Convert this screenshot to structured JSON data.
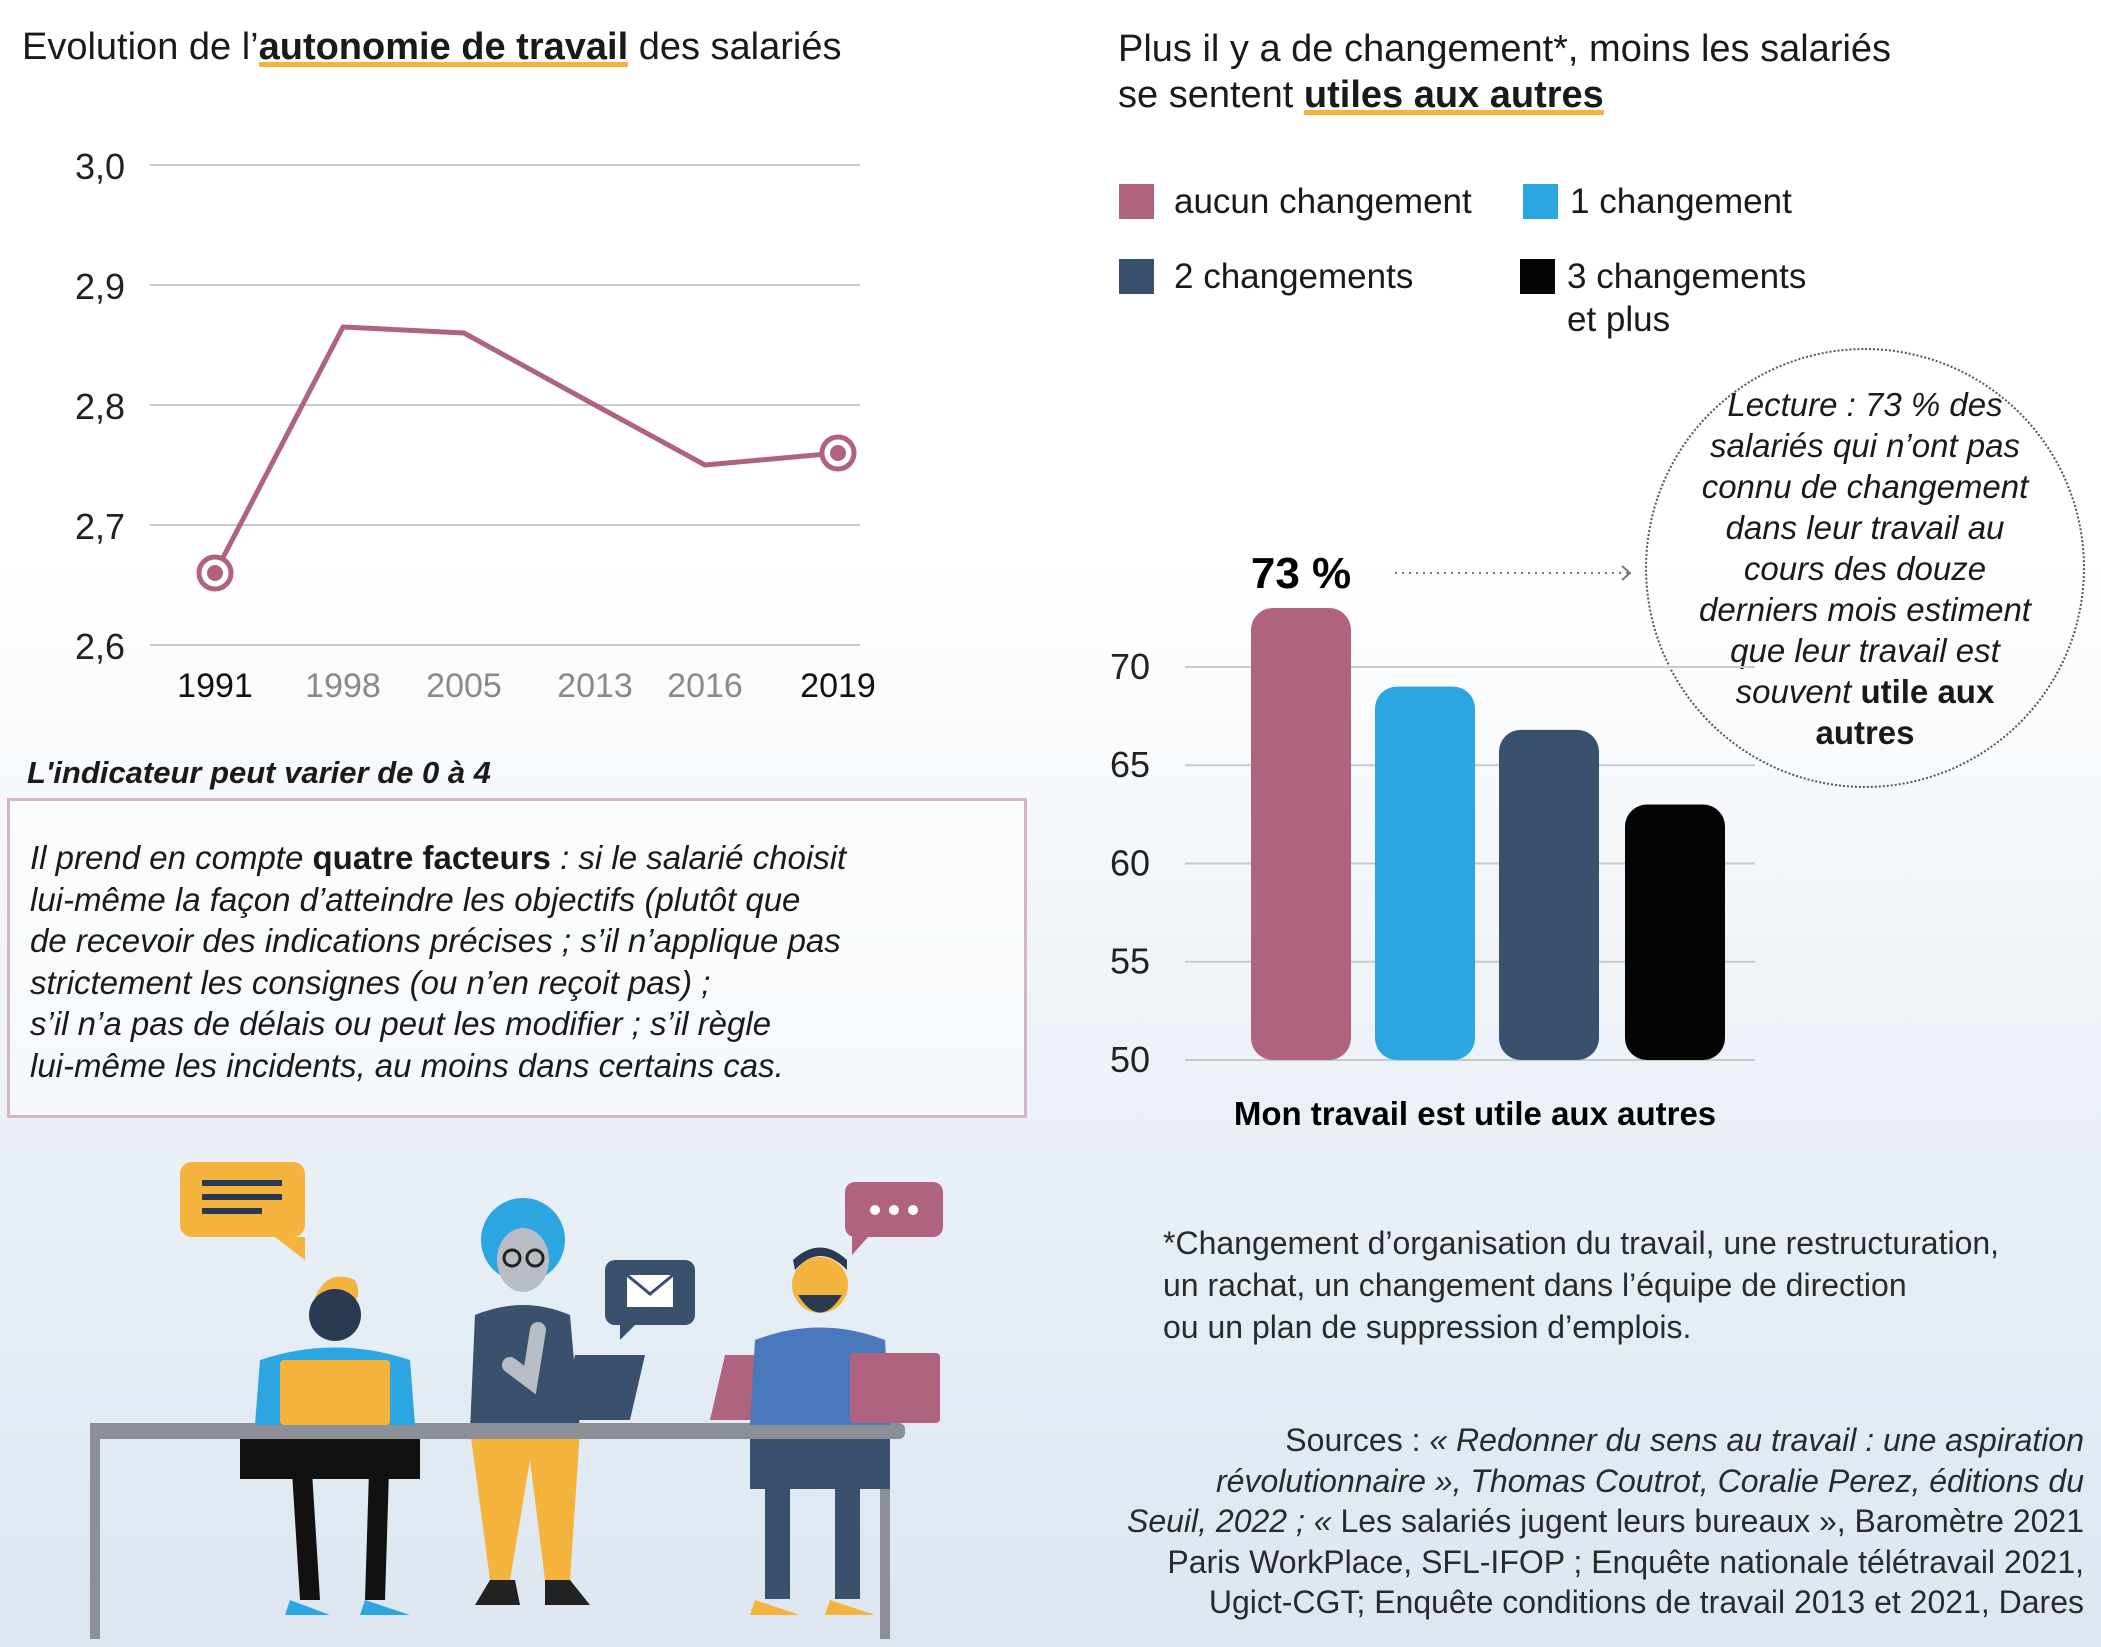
{
  "left_title": {
    "pre": "Evolution de l’",
    "highlight": "autonomie de travail",
    "post": " des salariés"
  },
  "right_title": {
    "line1": "Plus il y a de changement*, moins les salariés",
    "line2_pre": "se sentent ",
    "highlight": "utiles aux autres"
  },
  "legend": [
    {
      "label": "aucun changement",
      "color": "#b0637f"
    },
    {
      "label": "1 changement",
      "color": "#2ca6e0"
    },
    {
      "label": "2 changements",
      "color": "#3a516e"
    },
    {
      "label": "3 changements",
      "label2": "et plus",
      "color": "#050505"
    }
  ],
  "lecture": {
    "text": "Lecture : 73 % des salariés qui n’ont pas connu de changement dans leur travail au cours des douze derniers mois estiment que leur travail est souvent",
    "bold": "utile aux autres"
  },
  "indicator": {
    "title": "L'indicateur peut varier de 0 à 4",
    "lines": [
      {
        "pre": "Il prend en compte ",
        "bold": "quatre facteurs",
        "post": " : si le salarié choisit"
      },
      {
        "text": "lui-même la façon d’atteindre les objectifs (plutôt que"
      },
      {
        "text": "de recevoir des indications précises ; s’il n’applique pas"
      },
      {
        "text": "strictement les consignes (ou n’en reçoit pas) ;"
      },
      {
        "text": "s’il n’a pas de délais ou peut les modifier ; s’il règle"
      },
      {
        "text": "lui-même les incidents, au moins dans certains cas."
      }
    ]
  },
  "footnote": [
    "*Changement d’organisation du travail, une restructuration,",
    "un rachat, un changement dans l’équipe de direction",
    "ou un plan de suppression d’emplois."
  ],
  "sources": [
    {
      "plain": "Sources : ",
      "italic": " « Redonner du sens au travail : une aspiration"
    },
    {
      "italic": "révolutionnaire », Thomas Coutrot, Coralie Perez, éditions du"
    },
    {
      "italic": "Seuil, 2022 ; « ",
      "plain": "Les salariés jugent leurs bureaux », Baromètre 2021"
    },
    {
      "plain": "Paris WorkPlace, SFL-IFOP ; Enquête nationale télétravail 2021,"
    },
    {
      "plain": "Ugict-CGT; Enquête conditions de travail 2013 et 2021, Dares"
    }
  ],
  "chart_data": [
    {
      "type": "line",
      "x": [
        "1991",
        "1998",
        "2005",
        "2013",
        "2016",
        "2019"
      ],
      "y": [
        2.66,
        2.865,
        2.86,
        2.8,
        2.75,
        2.76
      ],
      "ylim": [
        2.6,
        3.0
      ],
      "yticks": [
        "3,0",
        "2,9",
        "2,8",
        "2,7",
        "2,6"
      ],
      "highlighted_x": [
        "1991",
        "2019"
      ],
      "color": "#b0637f",
      "grid": true
    },
    {
      "type": "bar",
      "categories": [
        "aucun changement",
        "1 changement",
        "2 changements",
        "3 changements et plus"
      ],
      "values": [
        73,
        69,
        66.8,
        63
      ],
      "colors": [
        "#b0637f",
        "#2ca6e0",
        "#3a516e",
        "#050505"
      ],
      "ylim": [
        50,
        73
      ],
      "yticks": [
        "70",
        "65",
        "60",
        "55",
        "50"
      ],
      "value_label": "73 %",
      "xlabel": "Mon travail est utile aux autres",
      "grid": true
    }
  ]
}
